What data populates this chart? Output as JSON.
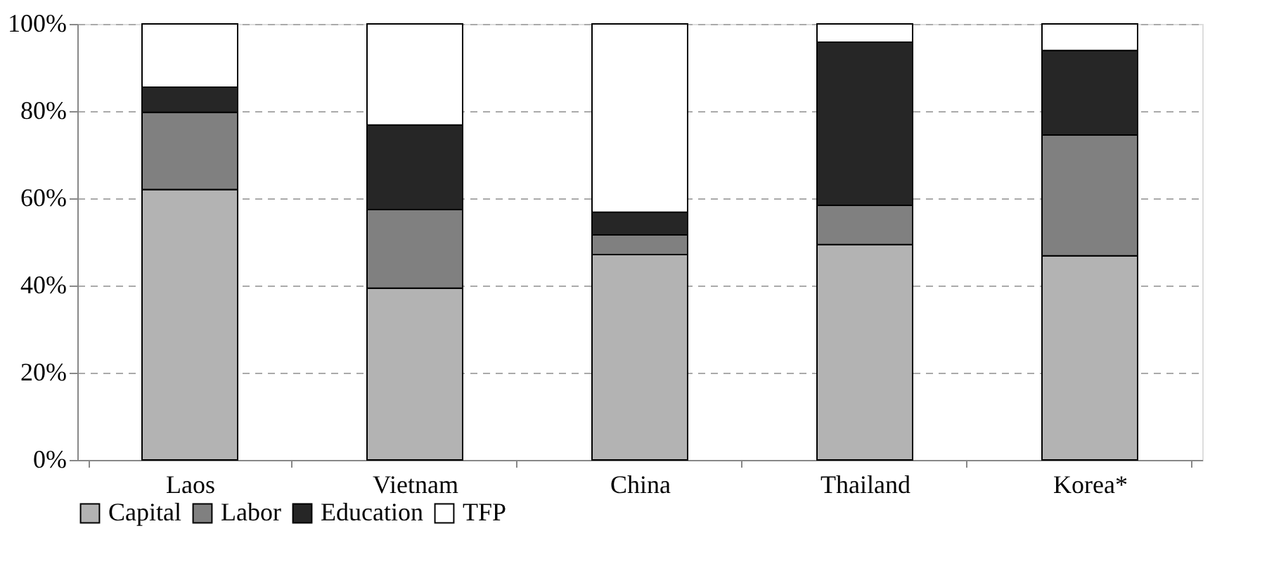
{
  "chart_data": {
    "type": "bar",
    "stacked": true,
    "categories": [
      "Laos",
      "Vietnam",
      "China",
      "Thailand",
      "Korea*"
    ],
    "series": [
      {
        "name": "Capital",
        "color": "#b3b3b3",
        "values": [
          62.0,
          39.4,
          47.1,
          49.4,
          46.8
        ]
      },
      {
        "name": "Labor",
        "color": "#808080",
        "values": [
          17.7,
          18.0,
          4.5,
          9.0,
          27.7
        ]
      },
      {
        "name": "Education",
        "color": "#262626",
        "values": [
          5.8,
          19.4,
          5.2,
          37.4,
          19.4
        ]
      },
      {
        "name": "TFP",
        "color": "#ffffff",
        "values": [
          14.5,
          23.2,
          43.2,
          4.2,
          6.1
        ]
      }
    ],
    "ylim": [
      0,
      100
    ],
    "yticks": [
      {
        "value": 0,
        "label": "0%"
      },
      {
        "value": 20,
        "label": "20%"
      },
      {
        "value": 40,
        "label": "40%"
      },
      {
        "value": 60,
        "label": "60%"
      },
      {
        "value": 80,
        "label": "80%"
      },
      {
        "value": 100,
        "label": "100%"
      }
    ],
    "grid": "y",
    "legend": "bottom"
  }
}
